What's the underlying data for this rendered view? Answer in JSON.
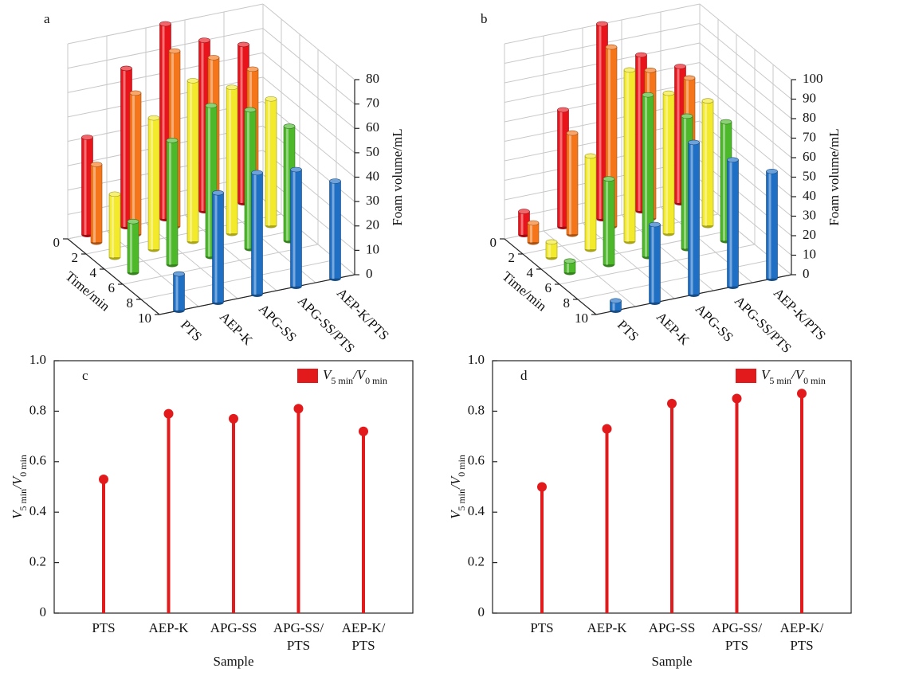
{
  "chart_data": [
    {
      "type": "bar3d",
      "title": "a",
      "categories": [
        "PTS",
        "AEP-K",
        "APG-SS",
        "APG-SS/PTS",
        "AEP-K/PTS"
      ],
      "times": [
        0,
        1,
        3,
        5,
        10
      ],
      "tlim": [
        0,
        10
      ],
      "tticks": [
        0,
        2,
        4,
        6,
        8,
        10
      ],
      "tlabel": "Time/min",
      "ylabel": "Foam volume/mL",
      "ylim": [
        0,
        80
      ],
      "yticks": [
        0,
        10,
        20,
        30,
        40,
        50,
        60,
        70,
        80
      ],
      "grid": true,
      "series": [
        {
          "color": "#e8131b",
          "values": [
            40,
            65,
            80,
            70,
            65
          ]
        },
        {
          "color": "#f5761a",
          "values": [
            32,
            58,
            72,
            66,
            58
          ]
        },
        {
          "color": "#f2ea2a",
          "values": [
            26,
            54,
            66,
            60,
            52
          ]
        },
        {
          "color": "#4cb82a",
          "values": [
            21,
            51,
            62,
            57,
            47
          ]
        },
        {
          "color": "#1f6fc4",
          "values": [
            15,
            45,
            50,
            48,
            40
          ]
        }
      ]
    },
    {
      "type": "bar3d",
      "title": "b",
      "categories": [
        "PTS",
        "AEP-K",
        "APG-SS",
        "APG-SS/PTS",
        "AEP-K/PTS"
      ],
      "times": [
        0,
        1,
        3,
        5,
        10
      ],
      "tlim": [
        0,
        10
      ],
      "tticks": [
        0,
        2,
        4,
        6,
        8,
        10
      ],
      "tlabel": "Time/min",
      "ylabel": "Foam volume/mL",
      "ylim": [
        0,
        100
      ],
      "yticks": [
        0,
        10,
        20,
        30,
        40,
        50,
        60,
        70,
        80,
        90,
        100
      ],
      "grid": true,
      "series": [
        {
          "color": "#e8131b",
          "values": [
            12,
            60,
            100,
            80,
            70
          ]
        },
        {
          "color": "#f5761a",
          "values": [
            10,
            52,
            92,
            76,
            68
          ]
        },
        {
          "color": "#f2ea2a",
          "values": [
            8,
            48,
            88,
            72,
            64
          ]
        },
        {
          "color": "#4cb82a",
          "values": [
            6,
            44,
            83,
            68,
            61
          ]
        },
        {
          "color": "#1f6fc4",
          "values": [
            5,
            40,
            78,
            65,
            55
          ]
        }
      ]
    },
    {
      "type": "lollipop",
      "title": "c",
      "categories": [
        "PTS",
        "AEP-K",
        "APG-SS",
        "APG-SS/\nPTS",
        "AEP-K/\nPTS"
      ],
      "xlabel": "Sample",
      "ylabel": "V5 min/V0 min",
      "legend": "upper right",
      "ylim": [
        0,
        1
      ],
      "yticks": [
        0,
        0.2,
        0.4,
        0.6,
        0.8,
        {
          "value": 1,
          "label": "1.0"
        }
      ],
      "series": [
        {
          "name": "V5 min/V0 min",
          "color": "#e31a1c",
          "values": [
            0.53,
            0.79,
            0.77,
            0.81,
            0.72
          ]
        }
      ]
    },
    {
      "type": "lollipop",
      "title": "d",
      "categories": [
        "PTS",
        "AEP-K",
        "APG-SS",
        "APG-SS/\nPTS",
        "AEP-K/\nPTS"
      ],
      "xlabel": "Sample",
      "ylabel": "V5 min/V0 min",
      "legend": "upper right",
      "ylim": [
        0,
        1
      ],
      "yticks": [
        0,
        0.2,
        0.4,
        0.6,
        0.8,
        {
          "value": 1,
          "label": "1.0"
        }
      ],
      "series": [
        {
          "name": "V5 min/V0 min",
          "color": "#e31a1c",
          "values": [
            0.5,
            0.73,
            0.83,
            0.85,
            0.87
          ]
        }
      ]
    }
  ]
}
